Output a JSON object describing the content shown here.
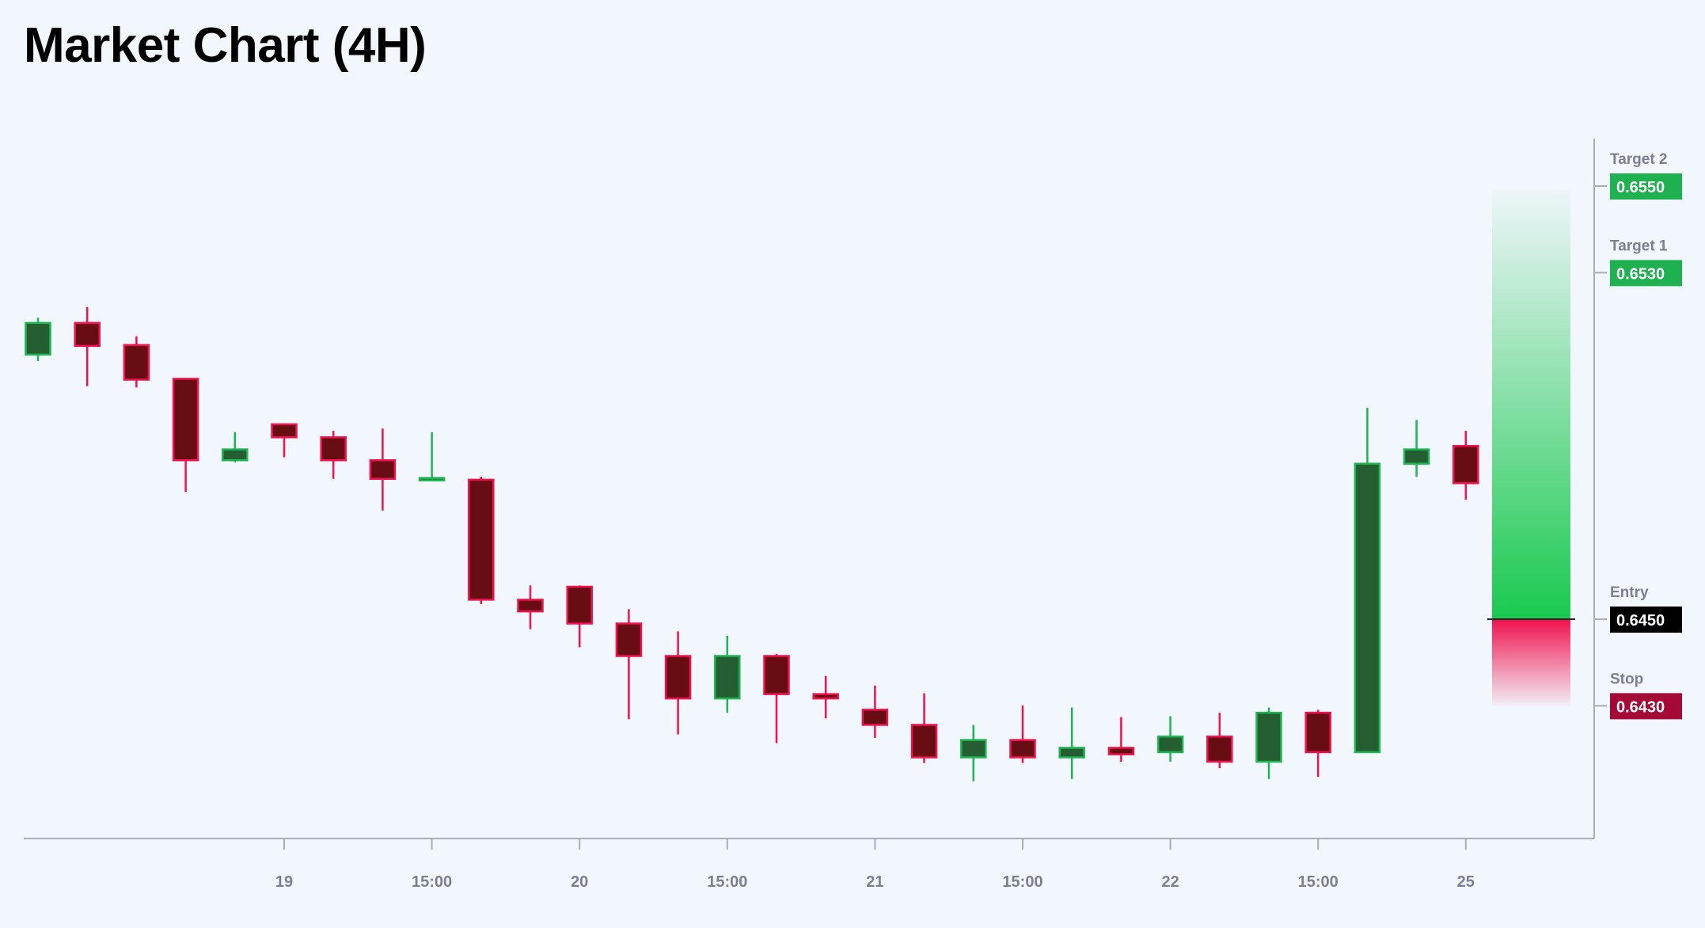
{
  "title": "Market Chart (4H)",
  "chart_data": {
    "type": "candlestick",
    "title": "Market Chart (4H)",
    "xlabel": "",
    "ylabel": "",
    "ylim": [
      0.6395,
      0.6575
    ],
    "grid": false,
    "colors": {
      "up_fill": "#245e31",
      "up_border": "#1fb552",
      "down_fill": "#690d14",
      "down_border": "#f0134d",
      "background": "#f2f6fd",
      "axis": "#a9adbb"
    },
    "x_ticks": [
      {
        "label": "19",
        "index": 5
      },
      {
        "label": "15:00",
        "index": 8
      },
      {
        "label": "20",
        "index": 11
      },
      {
        "label": "15:00",
        "index": 14
      },
      {
        "label": "21",
        "index": 17
      },
      {
        "label": "15:00",
        "index": 20
      },
      {
        "label": "22",
        "index": 23
      },
      {
        "label": "15:00",
        "index": 26
      },
      {
        "label": "25",
        "index": 29
      }
    ],
    "candles": [
      {
        "o": 0.65111,
        "h": 0.65196,
        "l": 0.65096,
        "c": 0.65184
      },
      {
        "o": 0.65184,
        "h": 0.65221,
        "l": 0.65038,
        "c": 0.65131
      },
      {
        "o": 0.65133,
        "h": 0.65153,
        "l": 0.65035,
        "c": 0.65053
      },
      {
        "o": 0.65055,
        "h": 0.65057,
        "l": 0.64794,
        "c": 0.64867
      },
      {
        "o": 0.64867,
        "h": 0.64932,
        "l": 0.64862,
        "c": 0.64892
      },
      {
        "o": 0.6495,
        "h": 0.64952,
        "l": 0.64874,
        "c": 0.6492
      },
      {
        "o": 0.6492,
        "h": 0.64935,
        "l": 0.64824,
        "c": 0.64867
      },
      {
        "o": 0.64867,
        "h": 0.6494,
        "l": 0.64751,
        "c": 0.64824
      },
      {
        "o": 0.64822,
        "h": 0.64932,
        "l": 0.6482,
        "c": 0.64826
      },
      {
        "o": 0.64822,
        "h": 0.64829,
        "l": 0.64535,
        "c": 0.64545
      },
      {
        "o": 0.64545,
        "h": 0.64578,
        "l": 0.64477,
        "c": 0.64518
      },
      {
        "o": 0.64575,
        "h": 0.64578,
        "l": 0.64435,
        "c": 0.6449
      },
      {
        "o": 0.6449,
        "h": 0.64523,
        "l": 0.64269,
        "c": 0.64415
      },
      {
        "o": 0.64415,
        "h": 0.64472,
        "l": 0.64234,
        "c": 0.64317
      },
      {
        "o": 0.64317,
        "h": 0.64462,
        "l": 0.64284,
        "c": 0.64415
      },
      {
        "o": 0.64415,
        "h": 0.6442,
        "l": 0.64214,
        "c": 0.64327
      },
      {
        "o": 0.64327,
        "h": 0.64369,
        "l": 0.64271,
        "c": 0.64317
      },
      {
        "o": 0.64291,
        "h": 0.64347,
        "l": 0.64226,
        "c": 0.64256
      },
      {
        "o": 0.64256,
        "h": 0.64329,
        "l": 0.64168,
        "c": 0.64181
      },
      {
        "o": 0.64181,
        "h": 0.64256,
        "l": 0.64126,
        "c": 0.64221
      },
      {
        "o": 0.64221,
        "h": 0.64301,
        "l": 0.64168,
        "c": 0.64181
      },
      {
        "o": 0.64181,
        "h": 0.64296,
        "l": 0.64131,
        "c": 0.64203
      },
      {
        "o": 0.64203,
        "h": 0.64274,
        "l": 0.64171,
        "c": 0.64188
      },
      {
        "o": 0.64193,
        "h": 0.64276,
        "l": 0.64171,
        "c": 0.64229
      },
      {
        "o": 0.64229,
        "h": 0.64284,
        "l": 0.64156,
        "c": 0.64171
      },
      {
        "o": 0.64171,
        "h": 0.64296,
        "l": 0.64131,
        "c": 0.64284
      },
      {
        "o": 0.64284,
        "h": 0.64291,
        "l": 0.64136,
        "c": 0.64193
      },
      {
        "o": 0.64193,
        "h": 0.64988,
        "l": 0.64191,
        "c": 0.64859
      },
      {
        "o": 0.64859,
        "h": 0.6496,
        "l": 0.64829,
        "c": 0.64892
      },
      {
        "o": 0.649,
        "h": 0.64935,
        "l": 0.64776,
        "c": 0.64814
      }
    ],
    "levels": [
      {
        "name": "Target 2",
        "value": 0.655,
        "label": "0.6550",
        "color": "#1fb04f"
      },
      {
        "name": "Target 1",
        "value": 0.653,
        "label": "0.6530",
        "color": "#1fb04f"
      },
      {
        "name": "Entry",
        "value": 0.645,
        "label": "0.6450",
        "color": "#000000"
      },
      {
        "name": "Stop",
        "value": 0.643,
        "label": "0.6430",
        "color": "#a50a36"
      }
    ],
    "position": {
      "entry": 0.645,
      "target": 0.655,
      "stop": 0.643,
      "profit_color": "#1ac94f",
      "loss_color": "#f0134d"
    }
  }
}
